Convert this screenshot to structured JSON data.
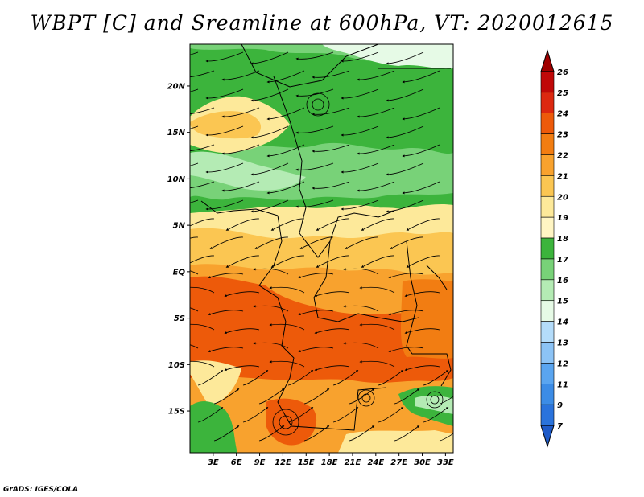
{
  "title": "WBPT [C] and Sreamline at 600hPa, VT: 2020012615",
  "credit": "GrADS: IGES/COLA",
  "map": {
    "lat_ticks": [
      "20N",
      "15N",
      "10N",
      "5N",
      "EQ",
      "5S",
      "10S",
      "15S"
    ],
    "lon_ticks": [
      "3E",
      "6E",
      "9E",
      "12E",
      "15E",
      "18E",
      "21E",
      "24E",
      "27E",
      "30E",
      "33E"
    ],
    "lat_range": [
      -19.5,
      24.5
    ],
    "lon_range": [
      0,
      34
    ],
    "field": "wet-bulb potential temperature (shaded) with 600hPa streamlines",
    "regions": [
      {
        "name": "north-band",
        "level": 17,
        "color": "#3cb43c"
      },
      {
        "name": "north-cool-patch",
        "level": 15,
        "color": "#e6fae6"
      },
      {
        "name": "west-warm-tongue",
        "level": 19,
        "color": "#fde99a"
      },
      {
        "name": "equatorial-band",
        "level": 19,
        "color": "#fde99a"
      },
      {
        "name": "central-core",
        "level": 23,
        "color": "#ed5a0a"
      },
      {
        "name": "southeast-core",
        "level": 22,
        "color": "#f27d12"
      },
      {
        "name": "south-west-green",
        "level": 17,
        "color": "#3cb43c"
      },
      {
        "name": "south-east-green",
        "level": 17,
        "color": "#3cb43c"
      }
    ]
  },
  "colorbar": {
    "labels": [
      "26",
      "25",
      "24",
      "23",
      "22",
      "21",
      "20",
      "19",
      "18",
      "17",
      "16",
      "15",
      "14",
      "13",
      "12",
      "11",
      "9",
      "7"
    ],
    "colors": [
      "#a00000",
      "#c00808",
      "#dc2810",
      "#ed5a0a",
      "#f27d12",
      "#f8a22e",
      "#fbc652",
      "#fde99a",
      "#fff5c3",
      "#3cb43c",
      "#78d278",
      "#b4ebb4",
      "#e6fae6",
      "#b4dcfa",
      "#8cc3f5",
      "#5aa5f0",
      "#3c8ce6",
      "#2a73dc",
      "#1e5ac8"
    ]
  }
}
